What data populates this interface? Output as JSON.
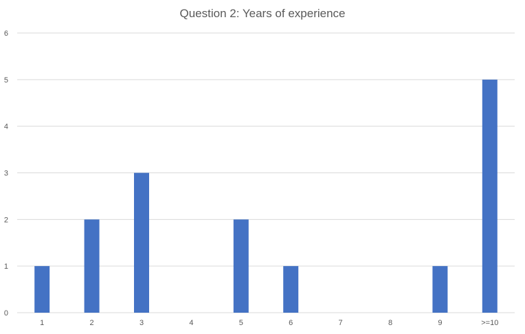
{
  "chart_data": {
    "type": "bar",
    "title": "Question 2: Years of experience",
    "xlabel": "",
    "ylabel": "",
    "categories": [
      "1",
      "2",
      "3",
      "4",
      "5",
      "6",
      "7",
      "8",
      "9",
      ">=10"
    ],
    "values": [
      1,
      2,
      3,
      0,
      2,
      1,
      0,
      0,
      1,
      5
    ],
    "ylim": [
      0,
      6
    ],
    "yticks": [
      "0",
      "1",
      "2",
      "3",
      "4",
      "5",
      "6"
    ],
    "grid": true,
    "legend": "none",
    "bar_color": "#4472C4",
    "grid_color": "#D9D9D9"
  }
}
